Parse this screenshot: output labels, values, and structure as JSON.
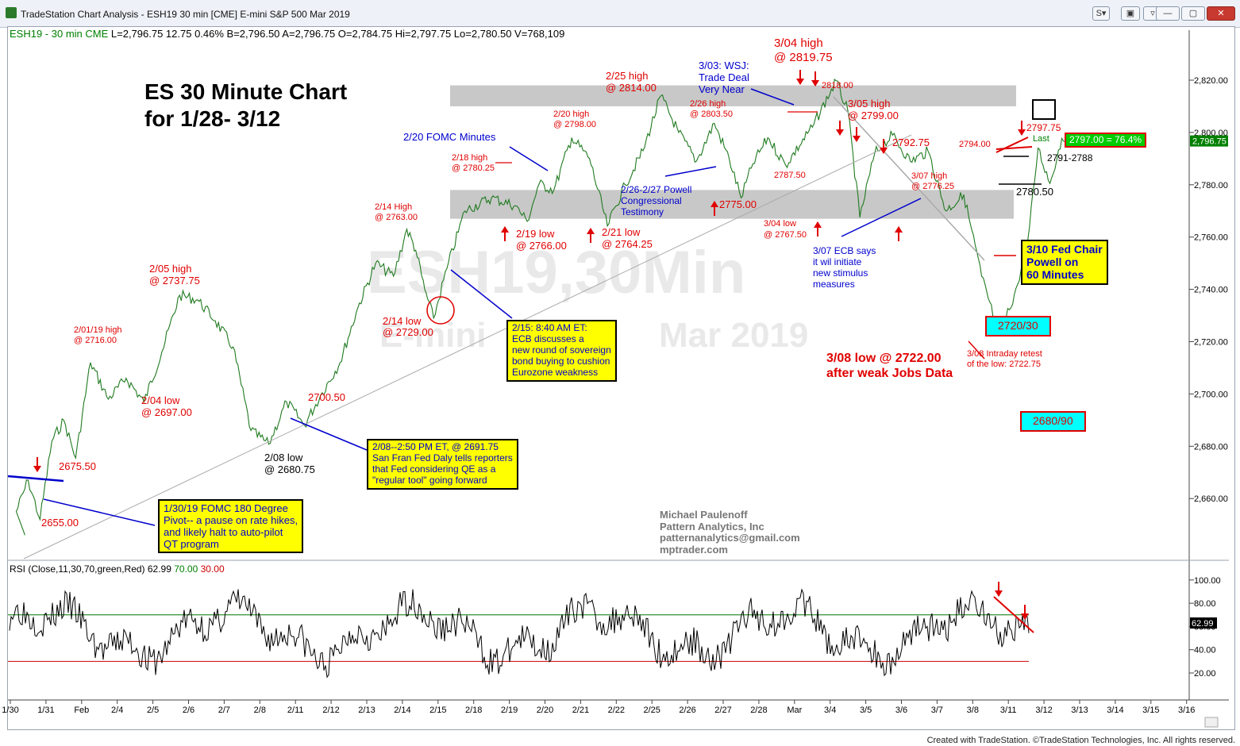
{
  "window": {
    "title": "TradeStation Chart Analysis - ESH19 30 min [CME] E-mini S&P 500 Mar 2019",
    "s_button": "S",
    "footer": "Created with TradeStation. ©TradeStation Technologies, Inc. All rights reserved."
  },
  "infoline": {
    "symbol": "ESH19 - 30 min  CME",
    "quote": "L=2,796.75  12.75  0.46%  B=2,796.50  A=2,796.75  O=2,784.75  Hi=2,797.75  Lo=2,780.50  V=768,109"
  },
  "watermark": {
    "line1": "ESH19,30Min",
    "line2a": "E-mini",
    "line2b": "Mar 2019"
  },
  "colors": {
    "red": "#e00000",
    "blue": "#0000cc",
    "green": "#008000",
    "band": "#c8c8c8",
    "box_yellow": "#ffff00",
    "box_cyan": "#00ffff",
    "last_green": "#00cc00"
  },
  "chart_data": [
    {
      "type": "line",
      "title": "ES 30 Minute Chart for 1/28- 3/12",
      "symbol": "ESH19, 30 min, CME",
      "y_axis": "right",
      "ylim": [
        2640,
        2832
      ],
      "y_ticks": [
        2660,
        2680,
        2700,
        2720,
        2740,
        2760,
        2780,
        2800,
        2820
      ],
      "y_tick_labels": [
        "2,660.00",
        "2,680.00",
        "2,700.00",
        "2,720.00",
        "2,740.00",
        "2,760.00",
        "2,780.00",
        "2,800.00",
        "2,820.00"
      ],
      "x_ticks": [
        "1/30",
        "1/31",
        "Feb",
        "2/4",
        "2/5",
        "2/6",
        "2/7",
        "2/8",
        "2/11",
        "2/12",
        "2/13",
        "2/14",
        "2/15",
        "2/18",
        "2/19",
        "2/20",
        "2/21",
        "2/22",
        "2/25",
        "2/26",
        "2/27",
        "2/28",
        "Mar",
        "3/4",
        "3/5",
        "3/6",
        "3/7",
        "3/8",
        "3/11",
        "3/12",
        "3/13",
        "3/14",
        "3/15",
        "3/16"
      ],
      "price_path": [
        {
          "date": "1/29",
          "value": 2646
        },
        {
          "date": "1/30",
          "value": 2655
        },
        {
          "date": "1/30",
          "value": 2667
        },
        {
          "date": "1/30",
          "value": 2652
        },
        {
          "date": "1/31",
          "value": 2682
        },
        {
          "date": "1/31",
          "value": 2690
        },
        {
          "date": "1/31",
          "value": 2675.5
        },
        {
          "date": "Feb",
          "value": 2712
        },
        {
          "date": "Feb",
          "value": 2698
        },
        {
          "date": "2/4",
          "value": 2706
        },
        {
          "date": "2/4",
          "value": 2697
        },
        {
          "date": "2/5",
          "value": 2716
        },
        {
          "date": "2/5",
          "value": 2737.75
        },
        {
          "date": "2/6",
          "value": 2736
        },
        {
          "date": "2/6",
          "value": 2728
        },
        {
          "date": "2/7",
          "value": 2718
        },
        {
          "date": "2/7",
          "value": 2686
        },
        {
          "date": "2/8",
          "value": 2680.75
        },
        {
          "date": "2/8",
          "value": 2697
        },
        {
          "date": "2/11",
          "value": 2688
        },
        {
          "date": "2/11",
          "value": 2700.5
        },
        {
          "date": "2/12",
          "value": 2712
        },
        {
          "date": "2/12",
          "value": 2733
        },
        {
          "date": "2/13",
          "value": 2750
        },
        {
          "date": "2/13",
          "value": 2745
        },
        {
          "date": "2/14",
          "value": 2763
        },
        {
          "date": "2/14",
          "value": 2755
        },
        {
          "date": "2/14",
          "value": 2740
        },
        {
          "date": "2/14",
          "value": 2729
        },
        {
          "date": "2/15",
          "value": 2748
        },
        {
          "date": "2/15",
          "value": 2770
        },
        {
          "date": "2/18",
          "value": 2775
        },
        {
          "date": "2/19",
          "value": 2772
        },
        {
          "date": "2/19",
          "value": 2766
        },
        {
          "date": "2/19",
          "value": 2780.25
        },
        {
          "date": "2/20",
          "value": 2778
        },
        {
          "date": "2/20",
          "value": 2798
        },
        {
          "date": "2/21",
          "value": 2790
        },
        {
          "date": "2/21",
          "value": 2764.25
        },
        {
          "date": "2/22",
          "value": 2780
        },
        {
          "date": "2/22",
          "value": 2793
        },
        {
          "date": "2/25",
          "value": 2814
        },
        {
          "date": "2/25",
          "value": 2800
        },
        {
          "date": "2/26",
          "value": 2789
        },
        {
          "date": "2/26",
          "value": 2803.5
        },
        {
          "date": "2/27",
          "value": 2790
        },
        {
          "date": "2/27",
          "value": 2775
        },
        {
          "date": "2/27",
          "value": 2788
        },
        {
          "date": "2/28",
          "value": 2798
        },
        {
          "date": "2/28",
          "value": 2787.5
        },
        {
          "date": "Mar",
          "value": 2802
        },
        {
          "date": "3/4",
          "value": 2819.75
        },
        {
          "date": "3/4",
          "value": 2808
        },
        {
          "date": "3/4",
          "value": 2767.5
        },
        {
          "date": "3/5",
          "value": 2792
        },
        {
          "date": "3/5",
          "value": 2799
        },
        {
          "date": "3/6",
          "value": 2789
        },
        {
          "date": "3/6",
          "value": 2792.75
        },
        {
          "date": "3/7",
          "value": 2770
        },
        {
          "date": "3/7",
          "value": 2776.25
        },
        {
          "date": "3/8",
          "value": 2745
        },
        {
          "date": "3/8",
          "value": 2722
        },
        {
          "date": "3/11",
          "value": 2738
        },
        {
          "date": "3/11",
          "value": 2752
        },
        {
          "date": "3/11",
          "value": 2794
        },
        {
          "date": "3/12",
          "value": 2780.5
        },
        {
          "date": "3/12",
          "value": 2797.75
        },
        {
          "date": "3/12",
          "value": 2796.75
        }
      ],
      "resistance_band": [
        2810,
        2818
      ],
      "support_band": [
        2767,
        2778
      ],
      "last_price_label": "2,796.75",
      "current_label": "2797.00 = 76.4%",
      "last_text": "Last"
    },
    {
      "type": "line",
      "title": "RSI (Close,11,30,70,green,Red)",
      "legend": {
        "label": "RSI (Close,11,30,70,green,Red)",
        "value": "62.99",
        "ob": "70.00",
        "os": "30.00"
      },
      "ylim": [
        10,
        110
      ],
      "y_ticks": [
        20,
        40,
        60,
        80,
        100
      ],
      "y_tick_labels": [
        "20.00",
        "40.00",
        "60.00",
        "80.00",
        "100.00"
      ],
      "overbought": 70,
      "oversold": 30,
      "last_value_label": "62.99"
    }
  ],
  "annotations": {
    "title1": "ES 30 Minute Chart",
    "title2": "for 1/28- 3/12",
    "a_2655": "2655.00",
    "a_2675": "2675.50",
    "a_0201a": "2/01/19 high",
    "a_0201b": "@ 2716.00",
    "a_0205a": "2/05 high",
    "a_0205b": "@ 2737.75",
    "a_0204a": "2/04 low",
    "a_0204b": "@ 2697.00",
    "a_0208a": "2/08 low",
    "a_0208b": "@ 2680.75",
    "a_2700": "2700.50",
    "a_0214ha": "2/14 High",
    "a_0214hb": "@ 2763.00",
    "a_0214la": "2/14 low",
    "a_0214lb": "@ 2729.00",
    "a_fomc0220": "2/20 FOMC Minutes",
    "a_0218a": "2/18 high",
    "a_0218b": "@ 2780.25",
    "a_0219a": "2/19 low",
    "a_0219b": "@ 2766.00",
    "a_0220a": "2/20 high",
    "a_0220b": "@ 2798.00",
    "a_0221a": "2/21 low",
    "a_0221b": "@ 2764.25",
    "a_0225a": "2/25 high",
    "a_0225b": "@ 2814.00",
    "a_0226a": "2/26 high",
    "a_0226b": "@ 2803.50",
    "a_powell1": "2/26-2/27 Powell",
    "a_powell2": "Congressional",
    "a_powell3": "Testimony",
    "a_2775": "2775.00",
    "a_wsj1": "3/03: WSJ:",
    "a_wsj2": "Trade Deal",
    "a_wsj3": "Very Near",
    "a_0304ha": "3/04 high",
    "a_0304hb": "@ 2819.75",
    "a_2818": "2818.00",
    "a_0305a": "3/05 high",
    "a_0305b": "@ 2799.00",
    "a_2787": "2787.50",
    "a_0304la": "3/04 low",
    "a_0304lb": "@ 2767.50",
    "a_2792": "2792.75",
    "a_0307a": "3/07 high",
    "a_0307b": "@ 2776.25",
    "a_ecb1": "3/07 ECB says",
    "a_ecb2": "it wil initiate",
    "a_ecb3": "new stimulus",
    "a_ecb4": "measures",
    "a_2794": "2794.00",
    "a_2797": "2797.75",
    "a_27918": "2791-2788",
    "a_2780": "2780.50",
    "a_0308a": "3/08 low @ 2722.00",
    "a_0308b": "after weak Jobs Data",
    "a_retest1": "3/08 Intraday retest",
    "a_retest2": "of the low: 2722.75",
    "cyan1": "2720/30",
    "cyan2": "2680/90",
    "box_fed": [
      "3/10 Fed Chair",
      "Powell on",
      "60 Minutes"
    ],
    "box_ecb": [
      "2/15: 8:40 AM ET:",
      "ECB discusses a",
      "new round of sovereign",
      "bond buying to cushion",
      "Eurozone weakness"
    ],
    "box_daly": [
      "2/08--2:50 PM ET, @ 2691.75",
      "San Fran Fed Daly tells reporters",
      "that Fed considering QE as a",
      "\"regular tool\" going forward"
    ],
    "box_fomc": [
      "1/30/19 FOMC 180 Degree",
      "Pivot-- a pause on rate hikes,",
      "and likely halt to auto-pilot",
      "QT program"
    ],
    "credit": [
      "Michael Paulenoff",
      "Pattern Analytics, Inc",
      "patternanalytics@gmail.com",
      "mptrader.com"
    ]
  }
}
